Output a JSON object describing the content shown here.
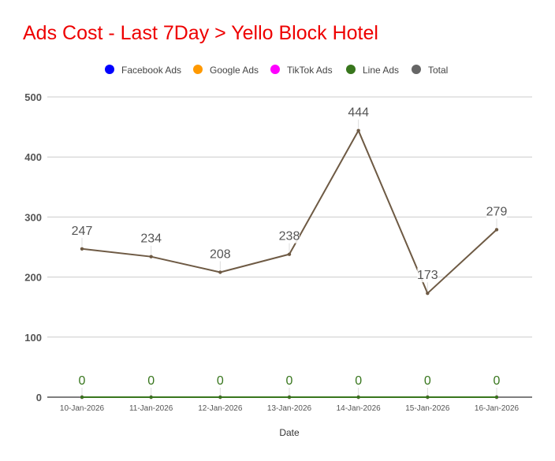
{
  "title_color": "#ee0000",
  "chart_data": {
    "type": "line",
    "title": "Ads Cost - Last 7Day > Yello Block Hotel",
    "xlabel": "Date",
    "ylabel": "",
    "ylim": [
      0,
      500
    ],
    "yticks": [
      0,
      100,
      200,
      300,
      400,
      500
    ],
    "grid": true,
    "legend_position": "top",
    "categories": [
      "10-Jan-2026",
      "11-Jan-2026",
      "12-Jan-2026",
      "13-Jan-2026",
      "14-Jan-2026",
      "15-Jan-2026",
      "16-Jan-2026"
    ],
    "series": [
      {
        "name": "Facebook Ads",
        "color": "#0000ff",
        "values": [
          0,
          0,
          0,
          0,
          0,
          0,
          0
        ],
        "show_labels": false
      },
      {
        "name": "Google Ads",
        "color": "#ff9900",
        "values": [
          0,
          0,
          0,
          0,
          0,
          0,
          0
        ],
        "show_labels": false
      },
      {
        "name": "TikTok Ads",
        "color": "#ff00ff",
        "values": [
          0,
          0,
          0,
          0,
          0,
          0,
          0
        ],
        "show_labels": false
      },
      {
        "name": "Line Ads",
        "color": "#38761d",
        "values": [
          0,
          0,
          0,
          0,
          0,
          0,
          0
        ],
        "show_labels": true
      },
      {
        "name": "Total",
        "color": "#666666",
        "line_color": "#6e5a44",
        "values": [
          247,
          234,
          208,
          238,
          444,
          173,
          279
        ],
        "show_labels": true
      }
    ]
  }
}
